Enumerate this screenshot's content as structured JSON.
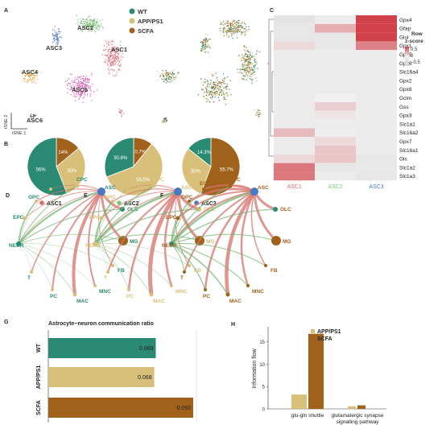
{
  "colors": {
    "wt": "#2a8a73",
    "app": "#d8c07a",
    "scfa": "#a0621b",
    "asc1": "#d96a73",
    "asc2": "#7cc37c",
    "asc3": "#4a78c2",
    "asc4": "#e2a43a",
    "asc5": "#d84fae",
    "asc6": "#555555",
    "heat_high": "#d2424a",
    "heat_mid": "#f0f0f0",
    "heat_low": "#d0d0d0",
    "edge_red": "#d5736b",
    "edge_green": "#6db36e"
  },
  "panel_a": {
    "letter": "A",
    "cluster_labels": [
      "ASC1",
      "ASC2",
      "ASC3",
      "ASC4",
      "ASC5",
      "ASC6"
    ],
    "legend": [
      "WT",
      "APP/PS1",
      "SCFA"
    ],
    "axis_x": "tSNE 1",
    "axis_y": "tSNE 2"
  },
  "panel_b": {
    "letter": "B",
    "pies": [
      {
        "label": "ASC1",
        "slices": [
          {
            "group": "WT",
            "value": 56
          },
          {
            "group": "APP/PS1",
            "value": 30
          },
          {
            "group": "SCFA",
            "value": 14
          }
        ],
        "texts": [
          "56%",
          "30%",
          "14%"
        ]
      },
      {
        "label": "ASC2",
        "slices": [
          {
            "group": "WT",
            "value": 30.8
          },
          {
            "group": "APP/PS1",
            "value": 58.5
          },
          {
            "group": "SCFA",
            "value": 10.7
          }
        ],
        "texts": [
          "30.8%",
          "58.5%",
          "10.7%"
        ]
      },
      {
        "label": "ASC3",
        "slices": [
          {
            "group": "WT",
            "value": 14.3
          },
          {
            "group": "APP/PS1",
            "value": 30
          },
          {
            "group": "SCFA",
            "value": 55.7
          }
        ],
        "texts": [
          "14.3%",
          "30%",
          "55.7%"
        ]
      }
    ]
  },
  "panel_c": {
    "letter": "C",
    "legend_title": "Row\nz-score",
    "legend_ticks": [
      "0.5",
      "0",
      "−0.5"
    ],
    "columns": [
      "ASC1",
      "ASC2",
      "ASC3"
    ],
    "genes": [
      "Gpx4",
      "Gfap",
      "Glul",
      "Gpx1",
      "Gpx5",
      "Gpx6",
      "Slc16a4",
      "Gpx2",
      "Gpx8",
      "Gclm",
      "Gss",
      "Gpx3",
      "Slc1a1",
      "Slc16a2",
      "Gpx7",
      "Slc16a1",
      "Gls",
      "Slc1a2",
      "Slc1a3"
    ],
    "values": [
      [
        -0.3,
        -0.1,
        0.8
      ],
      [
        -0.2,
        0.3,
        0.8
      ],
      [
        -0.2,
        -0.2,
        0.8
      ],
      [
        0.1,
        -0.2,
        0.5
      ],
      [
        -0.1,
        -0.1,
        -0.1
      ],
      [
        -0.1,
        -0.1,
        -0.1
      ],
      [
        -0.1,
        -0.1,
        -0.1
      ],
      [
        -0.1,
        -0.1,
        -0.1
      ],
      [
        -0.1,
        -0.1,
        -0.1
      ],
      [
        -0.1,
        0.0,
        -0.1
      ],
      [
        -0.1,
        0.15,
        -0.1
      ],
      [
        -0.1,
        0.05,
        -0.1
      ],
      [
        -0.1,
        -0.1,
        -0.1
      ],
      [
        0.25,
        -0.05,
        -0.1
      ],
      [
        -0.1,
        0.1,
        -0.1
      ],
      [
        -0.1,
        0.2,
        -0.1
      ],
      [
        0.1,
        0.2,
        -0.2
      ],
      [
        0.55,
        -0.2,
        -0.15
      ],
      [
        0.55,
        -0.1,
        -0.2
      ]
    ]
  },
  "panel_net": {
    "panels": [
      {
        "letter": "D",
        "group": "WT",
        "widths": [
          0.6,
          0.6,
          0.6,
          3,
          3,
          0.8,
          2,
          4,
          2,
          1.5,
          0.8,
          0.8,
          1.2,
          0.8
        ]
      },
      {
        "letter": "E",
        "group": "APP/PS1",
        "widths": [
          0.6,
          0.6,
          0.6,
          3.5,
          3.5,
          1,
          2.5,
          5,
          2.5,
          2,
          1,
          1,
          1.2,
          1
        ]
      },
      {
        "letter": "F",
        "group": "SCFA",
        "widths": [
          2,
          2,
          1.5,
          3,
          3,
          1.5,
          2.5,
          4.5,
          2.5,
          2,
          2,
          2,
          3,
          2.5
        ]
      }
    ],
    "nodes": [
      "EC",
      "CPC",
      "ASC",
      "OLC",
      "MG",
      "FB",
      "MNC",
      "MAC",
      "PC",
      "T",
      "NEUR",
      "EPC",
      "OPC"
    ]
  },
  "panel_g": {
    "letter": "G",
    "title": "Astrocyte−neuron communication ratio",
    "chart_data": {
      "type": "bar",
      "orientation": "horizontal",
      "categories": [
        "WT",
        "APP/PS1",
        "SCFA"
      ],
      "values": [
        0.069,
        0.068,
        0.093
      ],
      "value_labels": [
        "0.069",
        "0.068",
        "0.093"
      ]
    }
  },
  "panel_h": {
    "letter": "H",
    "chart_data": {
      "type": "bar",
      "ylabel": "Information flow",
      "ylim": [
        0,
        18
      ],
      "yticks": [
        "0",
        "5",
        "10",
        "15"
      ],
      "categories": [
        "glu-gln shuttle",
        "glutamatergic synapse\nsignalling pathway"
      ],
      "series": [
        {
          "name": "APP/PS1",
          "values": [
            3.2,
            0.6
          ]
        },
        {
          "name": "SCFA",
          "values": [
            16.8,
            0.8
          ]
        }
      ]
    }
  }
}
